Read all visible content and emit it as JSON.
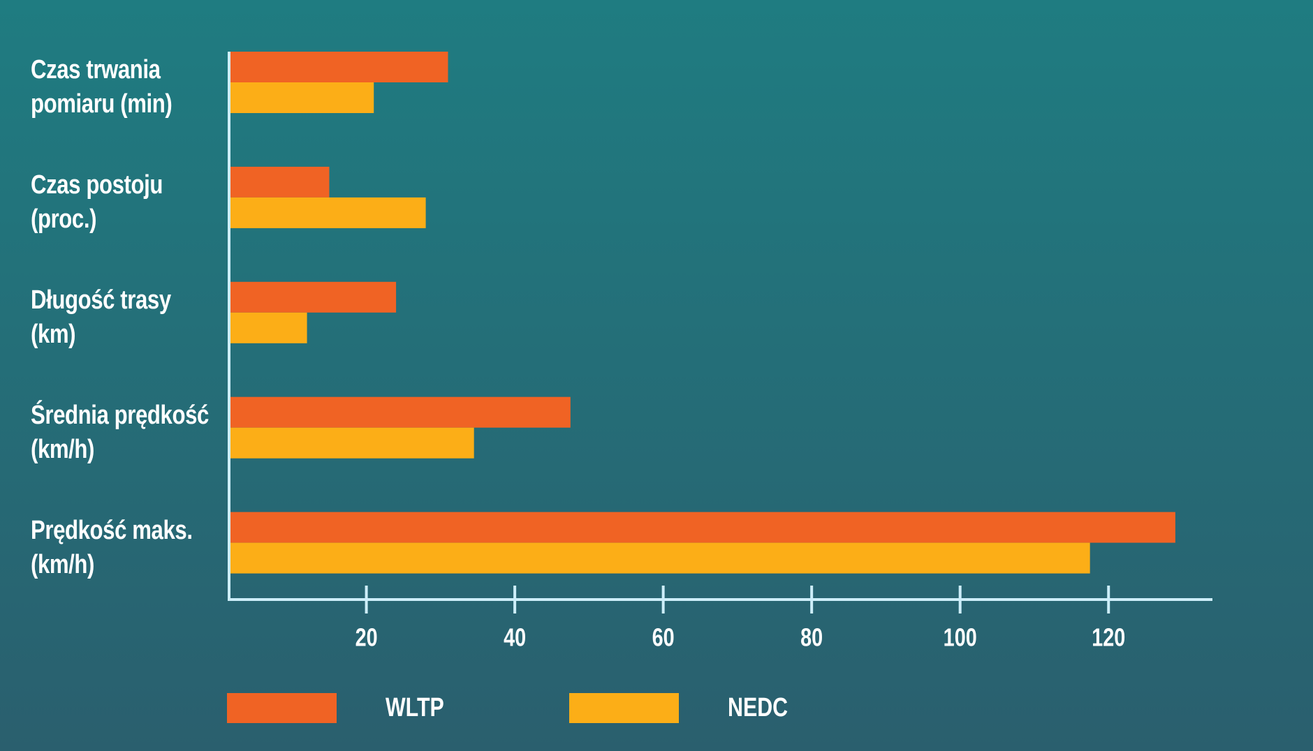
{
  "chart_data": {
    "type": "bar",
    "orientation": "horizontal",
    "categories": [
      "Czas trwania\npomiaru (min)",
      "Czas postoju\n(proc.)",
      "Długość trasy\n(km)",
      "Średnia prędkość\n(km/h)",
      "Prędkość maks.\n(km/h)"
    ],
    "series": [
      {
        "name": "WLTP",
        "color": "#f06324",
        "values": [
          31,
          15,
          24,
          47.5,
          129
        ]
      },
      {
        "name": "NEDC",
        "color": "#fcae17",
        "values": [
          21,
          28,
          12,
          34.5,
          117.5
        ]
      }
    ],
    "xlim": [
      1.5,
      134
    ],
    "xticks": [
      20,
      40,
      60,
      80,
      100,
      120
    ]
  }
}
